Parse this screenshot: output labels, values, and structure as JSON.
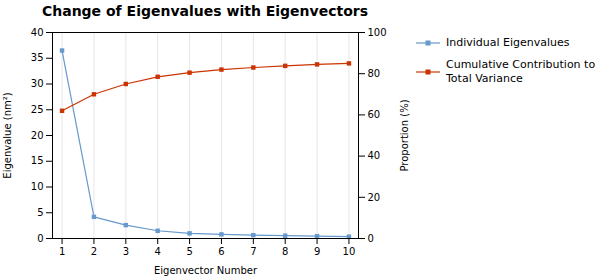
{
  "chart_data": {
    "type": "line",
    "title": "Change of Eigenvalues with Eigenvectors",
    "xlabel": "Eigenvector Number",
    "ylabel": "Eigenvalue (nm²)",
    "y2label": "Proportion (%)",
    "x": [
      1,
      2,
      3,
      4,
      5,
      6,
      7,
      8,
      9,
      10
    ],
    "series": [
      {
        "name": "Individual Eigenvalues",
        "color": "#6699CC",
        "marker": "square",
        "values": [
          36.5,
          4.2,
          2.6,
          1.5,
          1.0,
          0.8,
          0.65,
          0.55,
          0.45,
          0.35
        ]
      },
      {
        "name": "Cumulative Contribution to\nTotal Variance",
        "color": "#CC3300",
        "marker": "square",
        "axis": "y2",
        "values": [
          62.0,
          70.0,
          75.0,
          78.5,
          80.5,
          82.0,
          83.0,
          83.8,
          84.5,
          85.0
        ]
      }
    ],
    "xlim": [
      0.7,
      10.3
    ],
    "xticks": [
      1,
      2,
      3,
      4,
      5,
      6,
      7,
      8,
      9,
      10
    ],
    "ylim": [
      0,
      40
    ],
    "yticks": [
      0,
      5,
      10,
      15,
      20,
      25,
      30,
      35,
      40
    ],
    "y2lim": [
      0,
      100
    ],
    "y2ticks": [
      0,
      20,
      40,
      60,
      80,
      100
    ],
    "grid": "x",
    "legend": "right"
  }
}
